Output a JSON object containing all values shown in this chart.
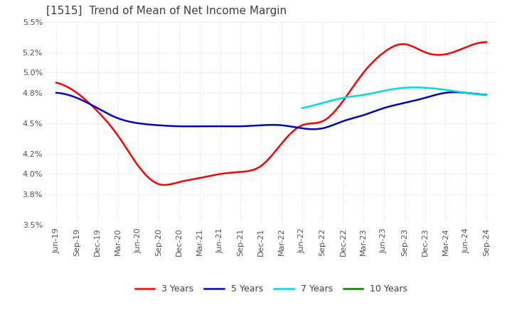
{
  "title": "[1515]  Trend of Mean of Net Income Margin",
  "ylim": [
    0.035,
    0.055
  ],
  "yticks": [
    0.035,
    0.038,
    0.04,
    0.042,
    0.045,
    0.048,
    0.05,
    0.052,
    0.055
  ],
  "ytick_labels": [
    "3.5%",
    "3.8%",
    "4.0%",
    "4.2%",
    "4.5%",
    "4.8%",
    "5.0%",
    "5.2%",
    "5.5%"
  ],
  "x_labels": [
    "Jun-19",
    "Sep-19",
    "Dec-19",
    "Mar-20",
    "Jun-20",
    "Sep-20",
    "Dec-20",
    "Mar-21",
    "Jun-21",
    "Sep-21",
    "Dec-21",
    "Mar-22",
    "Jun-22",
    "Sep-22",
    "Dec-22",
    "Mar-23",
    "Jun-23",
    "Sep-23",
    "Dec-23",
    "Mar-24",
    "Jun-24",
    "Sep-24"
  ],
  "series": {
    "3 Years": {
      "color": "#ff0000",
      "values": [
        0.049,
        0.048,
        0.0462,
        0.0438,
        0.0408,
        0.039,
        0.0392,
        0.0396,
        0.04,
        0.0402,
        0.0408,
        0.043,
        0.0448,
        0.0452,
        0.0472,
        0.05,
        0.052,
        0.0528,
        0.052,
        0.0518,
        0.0525,
        0.053
      ]
    },
    "5 Years": {
      "color": "#0000cc",
      "values": [
        0.048,
        0.0475,
        0.0465,
        0.0455,
        0.045,
        0.0448,
        0.0447,
        0.0447,
        0.0447,
        0.0447,
        0.0448,
        0.0448,
        0.0445,
        0.0445,
        0.0452,
        0.0458,
        0.0465,
        0.047,
        0.0475,
        0.048,
        0.048,
        0.0478
      ]
    },
    "7 Years": {
      "color": "#00dddd",
      "values": [
        null,
        null,
        null,
        null,
        null,
        null,
        null,
        null,
        null,
        null,
        null,
        null,
        0.0465,
        0.047,
        0.0475,
        0.0478,
        0.0482,
        0.0485,
        0.0485,
        0.0483,
        0.048,
        0.0478
      ]
    },
    "10 Years": {
      "color": "#008000",
      "values": [
        null,
        null,
        null,
        null,
        null,
        null,
        null,
        null,
        null,
        null,
        null,
        null,
        null,
        null,
        null,
        null,
        null,
        null,
        null,
        null,
        null,
        null
      ]
    }
  },
  "background_color": "#ffffff",
  "grid_color": "#c8c8c8",
  "title_fontsize": 11,
  "tick_fontsize": 8,
  "legend_fontsize": 9
}
